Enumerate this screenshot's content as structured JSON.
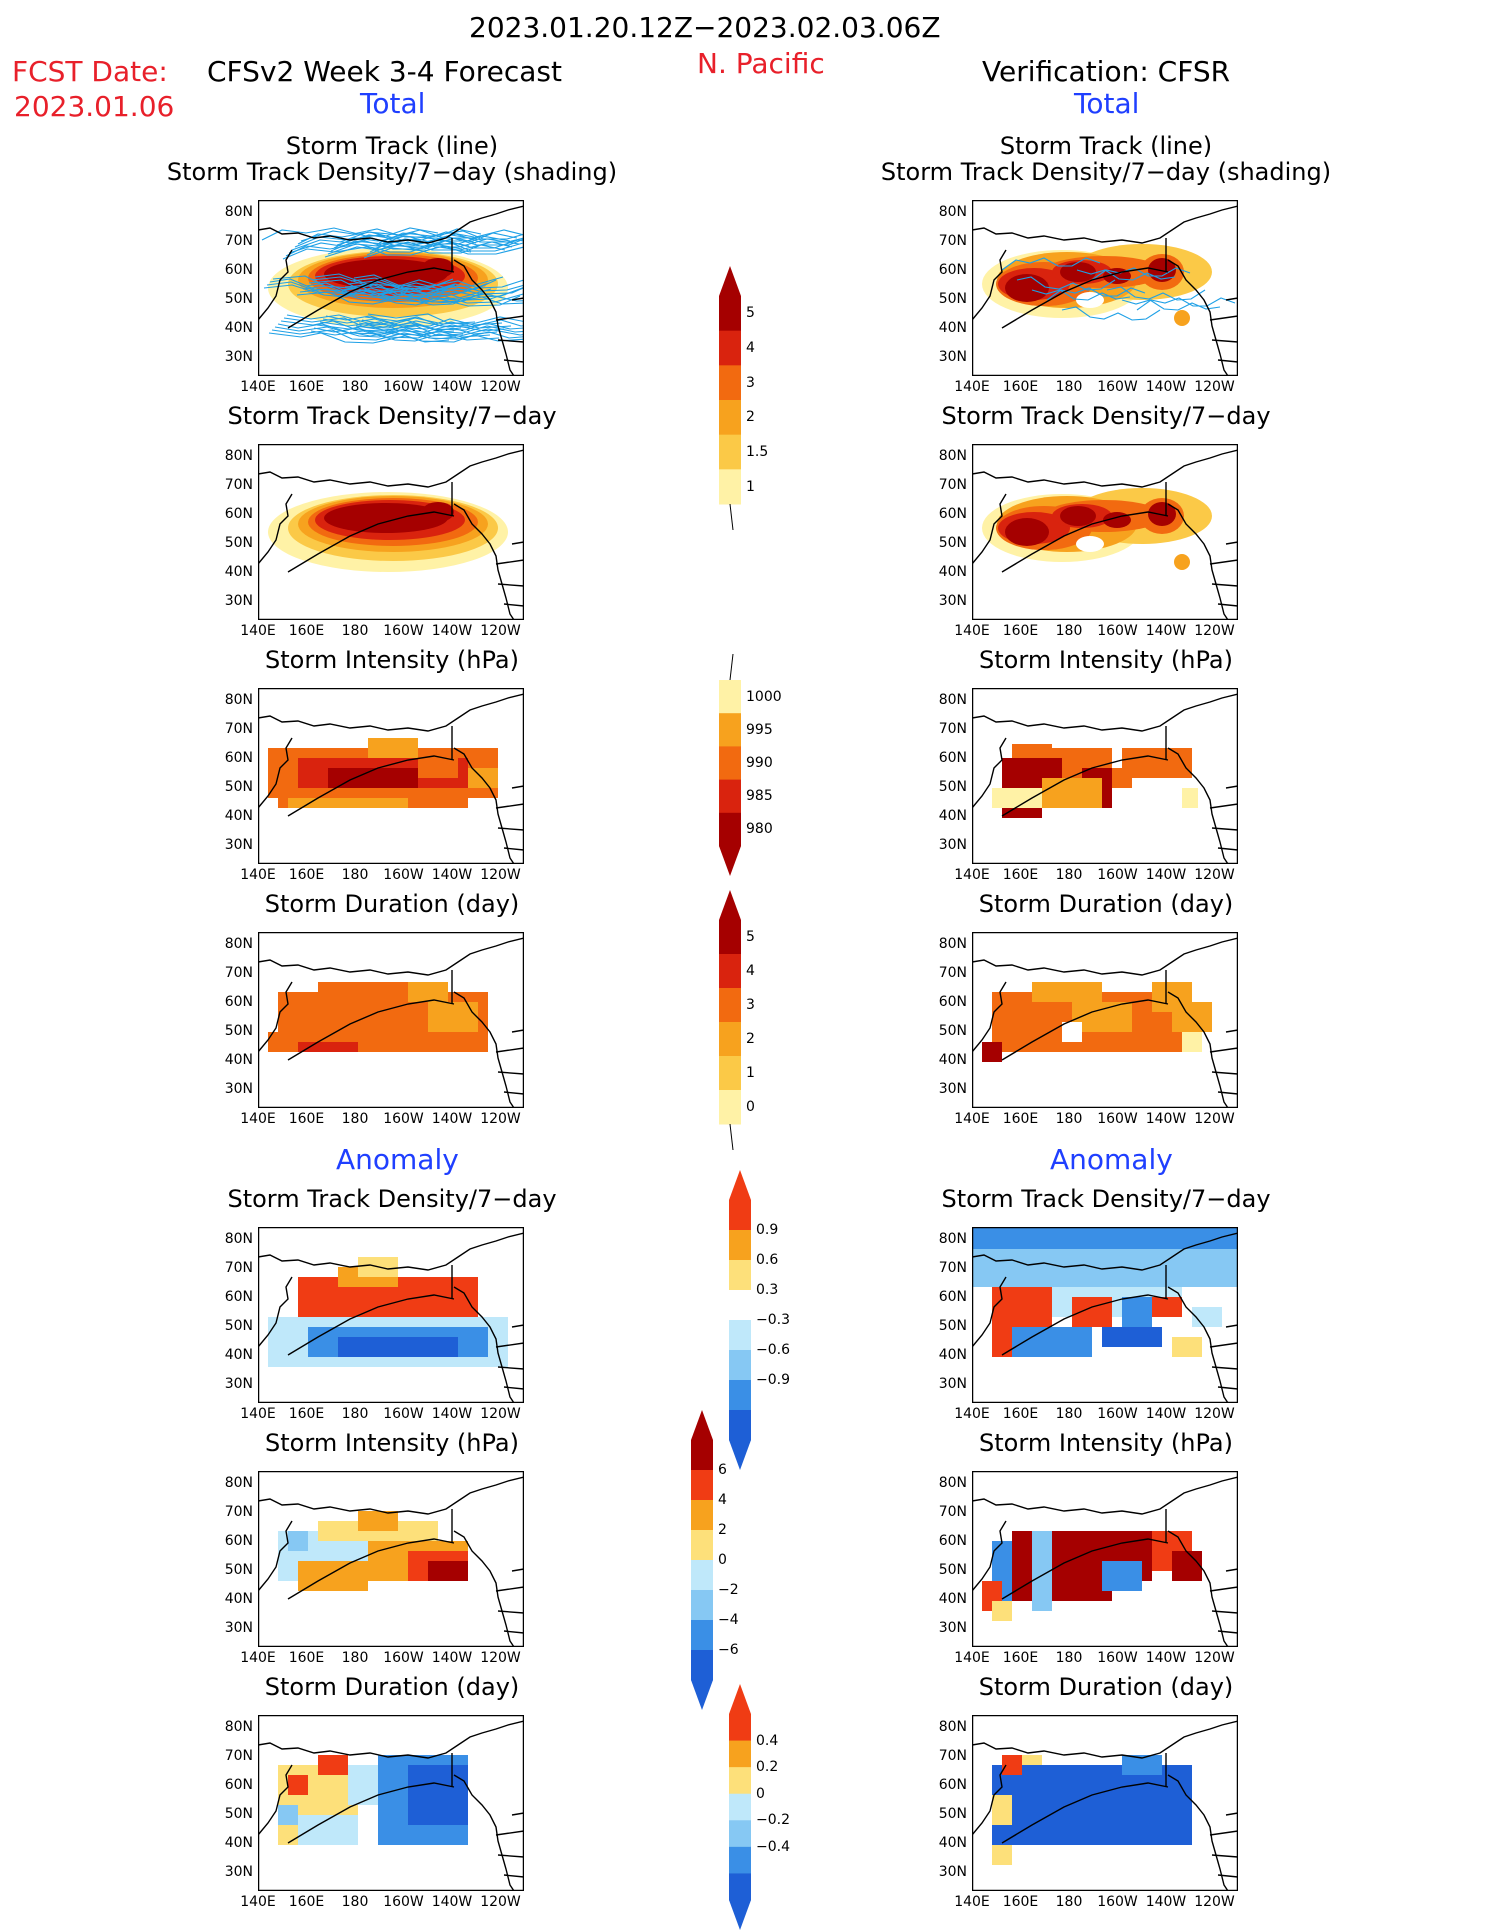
{
  "header": {
    "period": "2023.01.20.12Z−2023.02.03.06Z",
    "region": "N. Pacific",
    "fcst_label": "FCST Date:",
    "fcst_date": "2023.01.06",
    "left_title": "CFSv2 Week 3-4 Forecast",
    "right_title": "Verification: CFSR",
    "left_total": "Total",
    "right_total": "Total",
    "left_anomaly": "Anomaly",
    "right_anomaly": "Anomaly"
  },
  "panel_titles": {
    "track1": "Storm Track (line)",
    "track2": "Storm Track Density/7−day (shading)",
    "density": "Storm Track Density/7−day",
    "intensity": "Storm Intensity (hPa)",
    "duration": "Storm Duration (day)"
  },
  "axes": {
    "y_ticks": [
      "80N",
      "70N",
      "60N",
      "50N",
      "40N",
      "30N"
    ],
    "x_ticks": [
      "140E",
      "160E",
      "180",
      "160W",
      "140W",
      "120W"
    ]
  },
  "colorbars": {
    "density": {
      "labels": [
        "5",
        "4",
        "3",
        "2",
        "1.5",
        "1"
      ],
      "colors": [
        "#a50000",
        "#d9230e",
        "#f26a10",
        "#f7a21e",
        "#fbc947",
        "#fff2a6"
      ]
    },
    "intensity": {
      "labels": [
        "1000",
        "995",
        "990",
        "985",
        "980"
      ],
      "colors": [
        "#fff2a6",
        "#f7a21e",
        "#f26a10",
        "#d9230e",
        "#a50000"
      ]
    },
    "duration": {
      "labels": [
        "5",
        "4",
        "3",
        "2",
        "1",
        "0"
      ],
      "colors": [
        "#a50000",
        "#d9230e",
        "#f26a10",
        "#f7a21e",
        "#fbc947",
        "#fff2a6"
      ]
    },
    "density_anom": {
      "labels": [
        "0.9",
        "0.6",
        "0.3",
        "−0.3",
        "−0.6",
        "−0.9"
      ],
      "colors": [
        "#f03c14",
        "#f7a21e",
        "#fde07a",
        "#ffffff",
        "#bfe8fa",
        "#86c8f3",
        "#3a8fe6",
        "#1e5fd6"
      ]
    },
    "intensity_anom": {
      "labels": [
        "6",
        "4",
        "2",
        "0",
        "−2",
        "−4",
        "−6"
      ],
      "colors": [
        "#a50000",
        "#f03c14",
        "#f7a21e",
        "#fde07a",
        "#bfe8fa",
        "#86c8f3",
        "#3a8fe6",
        "#1e5fd6"
      ]
    },
    "duration_anom": {
      "labels": [
        "0.4",
        "0.2",
        "0",
        "−0.2",
        "−0.4"
      ],
      "colors": [
        "#f03c14",
        "#f7a21e",
        "#fde07a",
        "#bfe8fa",
        "#86c8f3",
        "#3a8fe6",
        "#1e5fd6"
      ]
    }
  },
  "chart_data": [
    {
      "type": "heatmap",
      "id": "fcst-track",
      "xlim": [
        "140E",
        "120W"
      ],
      "ylim": [
        "30N",
        "80N"
      ],
      "overlay": "storm tracks (line)",
      "field": "Storm Track Density/7-day",
      "max_region": "50N-60N, 160E-150W"
    },
    {
      "type": "heatmap",
      "id": "obs-track",
      "xlim": [
        "140E",
        "120W"
      ],
      "ylim": [
        "30N",
        "80N"
      ],
      "overlay": "storm tracks (line)",
      "field": "Storm Track Density/7-day",
      "max_region": "45N-58N, 150E-140W"
    },
    {
      "type": "heatmap",
      "id": "fcst-density",
      "field": "Storm Track Density/7-day",
      "levels": [
        1,
        1.5,
        2,
        3,
        4,
        5
      ]
    },
    {
      "type": "heatmap",
      "id": "obs-density",
      "field": "Storm Track Density/7-day",
      "levels": [
        1,
        1.5,
        2,
        3,
        4,
        5
      ]
    },
    {
      "type": "heatmap",
      "id": "fcst-intensity",
      "field": "Storm Intensity (hPa)",
      "levels": [
        980,
        985,
        990,
        995,
        1000
      ]
    },
    {
      "type": "heatmap",
      "id": "obs-intensity",
      "field": "Storm Intensity (hPa)",
      "levels": [
        980,
        985,
        990,
        995,
        1000
      ]
    },
    {
      "type": "heatmap",
      "id": "fcst-duration",
      "field": "Storm Duration (day)",
      "levels": [
        0,
        1,
        2,
        3,
        4,
        5
      ]
    },
    {
      "type": "heatmap",
      "id": "obs-duration",
      "field": "Storm Duration (day)",
      "levels": [
        0,
        1,
        2,
        3,
        4,
        5
      ]
    },
    {
      "type": "heatmap",
      "id": "fcst-density-anom",
      "field": "Storm Track Density/7-day anomaly",
      "levels": [
        -0.9,
        -0.6,
        -0.3,
        0.3,
        0.6,
        0.9
      ]
    },
    {
      "type": "heatmap",
      "id": "obs-density-anom",
      "field": "Storm Track Density/7-day anomaly",
      "levels": [
        -0.9,
        -0.6,
        -0.3,
        0.3,
        0.6,
        0.9
      ]
    },
    {
      "type": "heatmap",
      "id": "fcst-intensity-anom",
      "field": "Storm Intensity anomaly (hPa)",
      "levels": [
        -6,
        -4,
        -2,
        0,
        2,
        4,
        6
      ]
    },
    {
      "type": "heatmap",
      "id": "obs-intensity-anom",
      "field": "Storm Intensity anomaly (hPa)",
      "levels": [
        -6,
        -4,
        -2,
        0,
        2,
        4,
        6
      ]
    },
    {
      "type": "heatmap",
      "id": "fcst-duration-anom",
      "field": "Storm Duration anomaly (day)",
      "levels": [
        -0.4,
        -0.2,
        0,
        0.2,
        0.4
      ]
    },
    {
      "type": "heatmap",
      "id": "obs-duration-anom",
      "field": "Storm Duration anomaly (day)",
      "levels": [
        -0.4,
        -0.2,
        0,
        0.2,
        0.4
      ]
    }
  ]
}
